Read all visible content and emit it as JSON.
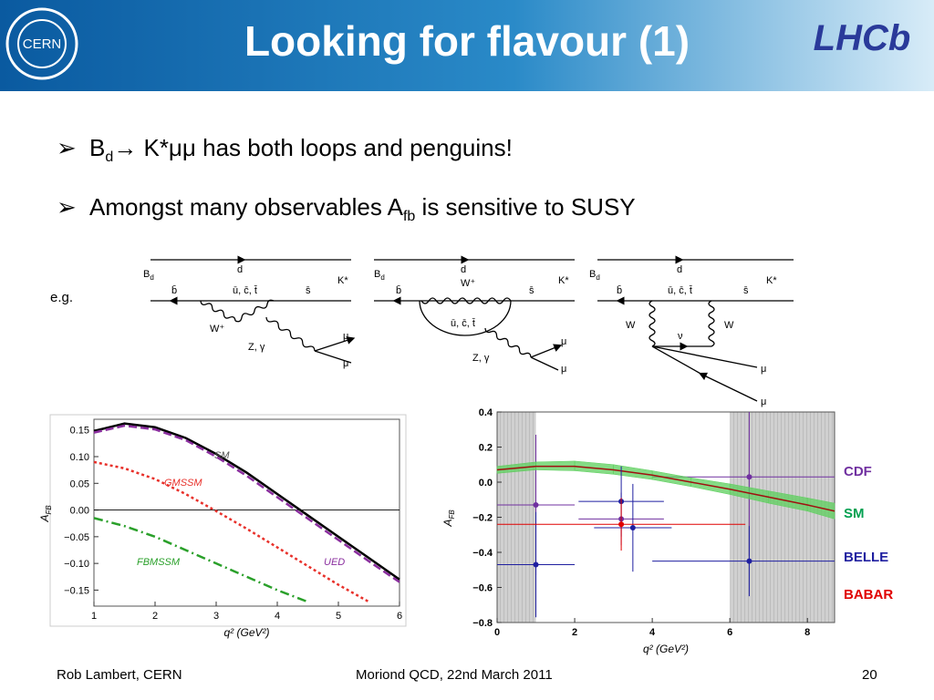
{
  "header": {
    "title": "Looking for flavour (1)",
    "left_logo": "CERN",
    "right_logo": "LHCb"
  },
  "bullets": [
    {
      "parts": [
        "B",
        "d",
        "→ K*μμ has both loops and penguins!"
      ]
    },
    {
      "parts": [
        "Amongst many observables A",
        "fb",
        " is sensitive to SUSY"
      ]
    }
  ],
  "eg": "e.g.",
  "diagrams": [
    {
      "meson": "B",
      "meson_sub": "d",
      "quark": "d",
      "kstar": "K*",
      "bbar": "b̄",
      "loop": "ū, c̄, t̄",
      "sbar": "s̄",
      "w": "W⁺",
      "z": "Z, γ",
      "mu1": "μ",
      "mu2": "μ"
    },
    {
      "meson": "B",
      "meson_sub": "d",
      "quark": "d",
      "kstar": "K*",
      "bbar": "b̄",
      "loop": "ū, c̄, t̄",
      "sbar": "s̄",
      "w": "W⁺",
      "z": "Z, γ",
      "mu1": "μ",
      "mu2": "μ"
    },
    {
      "meson": "B",
      "meson_sub": "d",
      "quark": "d",
      "kstar": "K*",
      "bbar": "b̄",
      "loop": "ū, c̄, t̄",
      "sbar": "s̄",
      "w1": "W",
      "w2": "W",
      "nu": "ν",
      "mu1": "μ",
      "mu2": "μ"
    }
  ],
  "chart_data": [
    {
      "type": "line",
      "xlabel": "q² (GeV²)",
      "ylabel": "A",
      "ylabel_sub": "FB",
      "x": [
        1,
        1.5,
        2,
        2.5,
        3,
        3.5,
        4,
        4.5,
        5,
        5.5,
        6
      ],
      "xlim": [
        1,
        6
      ],
      "xticks": [
        1,
        2,
        3,
        4,
        5,
        6
      ],
      "ylim": [
        -0.18,
        0.17
      ],
      "yticks": [
        0.15,
        {
          "value": 0.1,
          "label": "0.10"
        },
        0.05,
        {
          "value": 0,
          "label": "0.00"
        },
        {
          "value": -0.05,
          "label": "−0.05"
        },
        {
          "value": -0.1,
          "label": "−0.10"
        },
        {
          "value": -0.15,
          "label": "−0.15"
        }
      ],
      "zero_line": true,
      "series": [
        {
          "name": "SM",
          "color": "#000000",
          "style": "solid",
          "values": [
            0.148,
            0.162,
            0.155,
            0.135,
            0.105,
            0.07,
            0.03,
            -0.01,
            -0.05,
            -0.09,
            -0.13
          ]
        },
        {
          "name": "UED",
          "color": "#8b2f9f",
          "style": "dashed",
          "values": [
            0.145,
            0.158,
            0.151,
            0.131,
            0.1,
            0.064,
            0.024,
            -0.016,
            -0.056,
            -0.096,
            -0.135
          ]
        },
        {
          "name": "GMSSM",
          "color": "#e8302a",
          "style": "dotted",
          "values": [
            0.09,
            0.078,
            0.058,
            0.03,
            -0.002,
            -0.035,
            -0.07,
            -0.105,
            -0.14,
            -0.172,
            null
          ]
        },
        {
          "name": "FBMSSM",
          "color": "#2aa02a",
          "style": "dashdot",
          "values": [
            -0.015,
            -0.03,
            -0.05,
            -0.075,
            -0.1,
            -0.125,
            -0.15,
            -0.172,
            null,
            null,
            null
          ]
        }
      ]
    },
    {
      "type": "errorbar",
      "xlabel": "q² (GeV²)",
      "ylabel": "A",
      "ylabel_sub": "FB",
      "xlim": [
        0,
        8.7
      ],
      "xticks": [
        0,
        2,
        4,
        6,
        8
      ],
      "ylim": [
        -0.8,
        0.4
      ],
      "yticks": [
        0.4,
        0.2,
        {
          "value": 0,
          "label": "0.0"
        },
        {
          "value": -0.2,
          "label": "−0.2"
        },
        {
          "value": -0.4,
          "label": "−0.4"
        },
        {
          "value": -0.6,
          "label": "−0.6"
        },
        {
          "value": -0.8,
          "label": "−0.8"
        }
      ],
      "shaded_regions": [
        [
          0,
          1
        ],
        [
          6,
          8.7
        ]
      ],
      "series": [
        {
          "name": "CDF",
          "color": "#7030a0",
          "x": [
            1,
            3.2,
            6.5
          ],
          "values": [
            -0.13,
            -0.21,
            0.03
          ],
          "yerr": [
            0.4,
            0.15,
            0.45
          ],
          "xerr": [
            1,
            1.1,
            2.5
          ]
        },
        {
          "name": "SM",
          "color": "#00a050",
          "x": [
            0,
            1,
            2,
            3,
            4,
            5,
            6,
            7,
            8,
            8.7
          ],
          "values": [
            0.07,
            0.09,
            0.09,
            0.07,
            0.04,
            0,
            -0.04,
            -0.085,
            -0.13,
            -0.165
          ],
          "upper": [
            0.09,
            0.115,
            0.12,
            0.1,
            0.065,
            0.025,
            -0.01,
            -0.05,
            -0.09,
            -0.12
          ],
          "lower": [
            0.05,
            0.07,
            0.065,
            0.045,
            0.015,
            -0.025,
            -0.07,
            -0.12,
            -0.165,
            -0.21
          ]
        },
        {
          "name": "BELLE",
          "color": "#1f1fa0",
          "x": [
            1,
            3.2,
            3.5,
            6.5
          ],
          "values": [
            -0.47,
            -0.11,
            -0.26,
            -0.45
          ],
          "yerr": [
            0.3,
            0.2,
            0.25,
            0.2
          ],
          "xerr": [
            1,
            1.1,
            1,
            2.5
          ]
        },
        {
          "name": "BABAR",
          "color": "#e00000",
          "x": [
            3.2
          ],
          "values": [
            -0.24
          ],
          "yerr": [
            0.15
          ],
          "xerr": [
            3.2
          ]
        }
      ]
    }
  ],
  "footer": {
    "author": "Rob Lambert, CERN",
    "event": "Moriond QCD, 22nd March 2011",
    "page": "20"
  }
}
